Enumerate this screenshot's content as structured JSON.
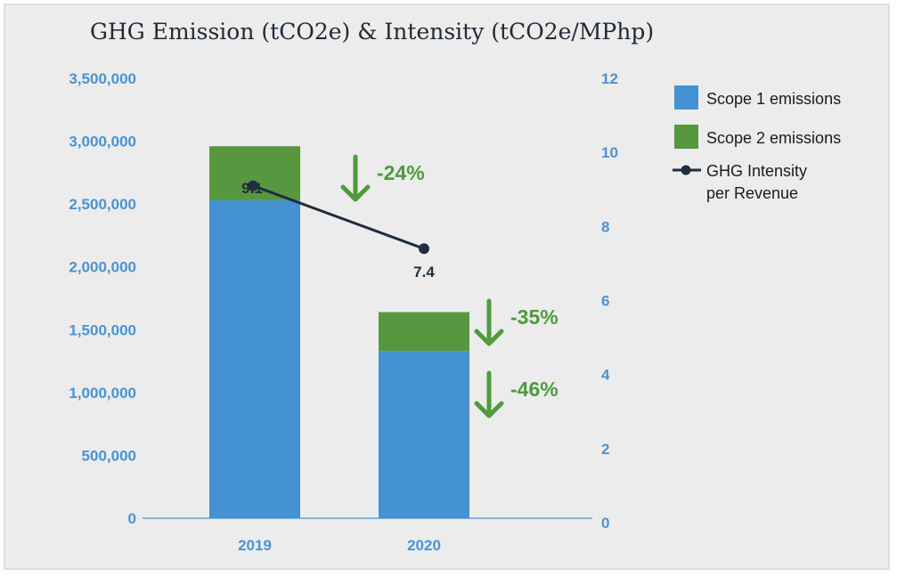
{
  "chart_data": {
    "type": "bar",
    "title": "GHG Emission (tCO2e) & Intensity (tCO2e/MPhp)",
    "categories": [
      "2019",
      "2020"
    ],
    "stacked": true,
    "series": [
      {
        "name": "Scope 1 emissions",
        "values": [
          2530000,
          1330000
        ],
        "color": "#4492d2",
        "axis": "left"
      },
      {
        "name": "Scope 2 emissions",
        "values": [
          430000,
          310000
        ],
        "color": "#56973f",
        "axis": "left"
      },
      {
        "name_lines": [
          "GHG Intensity",
          "per Revenue"
        ],
        "name": "GHG Intensity per Revenue",
        "type": "line",
        "values": [
          9.1,
          7.4
        ],
        "color": "#1f2d3d",
        "axis": "right"
      }
    ],
    "y_left": {
      "ylim": [
        0,
        3500000
      ],
      "ticks": [
        "0",
        "500,000",
        "1,000,000",
        "1,500,000",
        "2,000,000",
        "2,500,000",
        "3,000,000",
        "3,500,000"
      ]
    },
    "y_right": {
      "ylim": [
        0,
        12
      ],
      "ticks": [
        "0",
        "2",
        "4",
        "6",
        "8",
        "10",
        "12"
      ]
    },
    "data_labels": [
      "9.1",
      "7.4"
    ],
    "annotations": [
      {
        "text": "-24%",
        "direction": "down"
      },
      {
        "text": "-35%",
        "direction": "down"
      },
      {
        "text": "-46%",
        "direction": "down"
      }
    ],
    "legend": "right",
    "grid": false,
    "accent_color": "#4f9a3d",
    "axis_text_color": "#4a93d2"
  }
}
